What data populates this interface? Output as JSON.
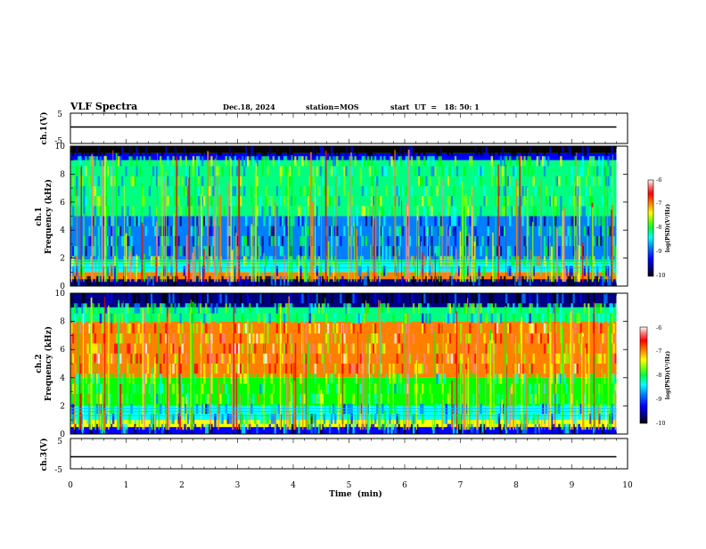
{
  "header": {
    "title": "VLF Spectra",
    "date": "Dec.18, 2024",
    "station": "station=MOS",
    "start": "start  UT  =   18: 50: 1"
  },
  "colors": {
    "spectrum": [
      "#000000",
      "#000080",
      "#0000ff",
      "#0080ff",
      "#00ffff",
      "#00ff80",
      "#00ff00",
      "#80ff00",
      "#ffff00",
      "#ff8000",
      "#ff0000",
      "#ff8080",
      "#ffffff"
    ],
    "frame": "#000000"
  },
  "chart_data": [
    {
      "type": "line",
      "panel": "ch1-waveform",
      "ylabel": "ch.1(V)",
      "ylim": [
        -5,
        5
      ],
      "ytick_labels": [
        "5",
        "-5"
      ],
      "xlim": [
        0,
        10
      ],
      "series": [
        {
          "x": [
            0,
            9.8
          ],
          "y": [
            0,
            0
          ]
        }
      ]
    },
    {
      "type": "heatmap",
      "panel": "ch1-spectrogram",
      "ylabel": "ch.1\nFrequency (kHz)",
      "ylim": [
        0,
        10
      ],
      "ytick_labels": [
        "0",
        "2",
        "4",
        "6",
        "8",
        "10"
      ],
      "xlim": [
        0,
        9.8
      ],
      "colorbar": {
        "label": "log(PSD)(V²/Hz)",
        "range": [
          -10,
          -6
        ],
        "tick_labels": [
          "-6",
          "-7",
          "-8",
          "-9",
          "-10"
        ]
      },
      "bands_khz": [
        {
          "from": 0.0,
          "to": 0.5,
          "level": -9.6
        },
        {
          "from": 0.5,
          "to": 1.0,
          "level": -7.0
        },
        {
          "from": 1.0,
          "to": 1.7,
          "level": -8.6
        },
        {
          "from": 1.7,
          "to": 1.9,
          "level": -7.9
        },
        {
          "from": 1.9,
          "to": 5.0,
          "level": -8.8
        },
        {
          "from": 5.0,
          "to": 9.0,
          "level": -8.2
        },
        {
          "from": 9.0,
          "to": 9.5,
          "level": -9.3
        },
        {
          "from": 9.5,
          "to": 10.0,
          "level": -9.9
        }
      ]
    },
    {
      "type": "heatmap",
      "panel": "ch2-spectrogram",
      "ylabel": "ch.2\nFrequency (kHz)",
      "ylim": [
        0,
        10
      ],
      "ytick_labels": [
        "0",
        "2",
        "4",
        "6",
        "8",
        "10"
      ],
      "xlim": [
        0,
        9.8
      ],
      "colorbar": {
        "label": "log(PSD)(V²/Hz)",
        "range": [
          -10,
          -6
        ],
        "tick_labels": [
          "-6",
          "-7",
          "-8",
          "-9",
          "-10"
        ]
      },
      "bands_khz": [
        {
          "from": 0.0,
          "to": 0.5,
          "level": -9.2
        },
        {
          "from": 0.5,
          "to": 1.0,
          "level": -7.4
        },
        {
          "from": 1.0,
          "to": 2.0,
          "level": -8.6
        },
        {
          "from": 2.0,
          "to": 4.0,
          "level": -8.0
        },
        {
          "from": 4.0,
          "to": 8.0,
          "level": -7.0
        },
        {
          "from": 8.0,
          "to": 9.0,
          "level": -8.3
        },
        {
          "from": 9.0,
          "to": 10.0,
          "level": -9.6
        }
      ]
    },
    {
      "type": "line",
      "panel": "ch3-waveform",
      "ylabel": "ch.3(V)",
      "ylim": [
        -5,
        5
      ],
      "ytick_labels": [
        "5",
        "-5"
      ],
      "xlim": [
        0,
        10
      ],
      "xlabel": "Time  (min)",
      "xtick_labels": [
        "0",
        "1",
        "2",
        "3",
        "4",
        "5",
        "6",
        "7",
        "8",
        "9",
        "10"
      ],
      "series": [
        {
          "x": [
            0,
            9.8
          ],
          "y": [
            0,
            0
          ]
        }
      ]
    }
  ]
}
